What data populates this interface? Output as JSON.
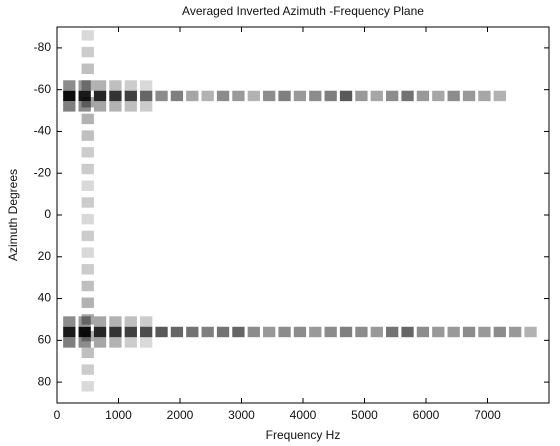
{
  "chart_data": {
    "type": "heatmap",
    "title": "Averaged Inverted Azimuth -Frequency Plane",
    "x_label": "Frequency Hz",
    "y_label": "Azimuth Degrees",
    "color": "#000000",
    "y_reversed": true,
    "xlim": [
      0,
      8000
    ],
    "ylim": [
      -90,
      90
    ],
    "xticks": [
      0,
      1000,
      2000,
      3000,
      4000,
      5000,
      6000,
      7000
    ],
    "yticks": [
      -80,
      -60,
      -40,
      -20,
      0,
      20,
      40,
      60,
      80
    ],
    "x": [
      500,
      500,
      500,
      500,
      500,
      500,
      500,
      500,
      500,
      500,
      500,
      500,
      500,
      500,
      500,
      500,
      500,
      500,
      500,
      500,
      500,
      500,
      200,
      450,
      700,
      950,
      1200,
      1450,
      200,
      450,
      700,
      950,
      1200,
      1450,
      200,
      450,
      700,
      950,
      1200,
      1450,
      1700,
      1950,
      2200,
      2450,
      2700,
      2950,
      3200,
      3450,
      3700,
      3950,
      4200,
      4450,
      4700,
      4950,
      5200,
      5450,
      5700,
      5950,
      6200,
      6450,
      6700,
      6950,
      7200,
      200,
      450,
      700,
      950,
      1200,
      1450,
      200,
      450,
      700,
      950,
      1200,
      1450,
      200,
      450,
      700,
      950,
      1200,
      1450,
      1700,
      1950,
      2200,
      2450,
      2700,
      2950,
      3200,
      3450,
      3700,
      3950,
      4200,
      4450,
      4700,
      4950,
      5200,
      5450,
      5700,
      5950,
      6200,
      6450,
      6700,
      6950,
      7200,
      7450,
      7700
    ],
    "y": [
      -86,
      -78,
      -70,
      -62,
      -54,
      -46,
      -38,
      -30,
      -22,
      -14,
      -6,
      2,
      10,
      18,
      26,
      34,
      42,
      50,
      58,
      66,
      74,
      82,
      -52,
      -52,
      -52,
      -52,
      -52,
      -52,
      -62,
      -62,
      -62,
      -62,
      -62,
      -62,
      -57,
      -57,
      -57,
      -57,
      -57,
      -57,
      -57,
      -57,
      -57,
      -57,
      -57,
      -57,
      -57,
      -57,
      -57,
      -57,
      -57,
      -57,
      -57,
      -57,
      -57,
      -57,
      -57,
      -57,
      -57,
      -57,
      -57,
      -57,
      -57,
      51,
      51,
      51,
      51,
      51,
      51,
      61,
      61,
      61,
      61,
      61,
      61,
      56,
      56,
      56,
      56,
      56,
      56,
      56,
      56,
      56,
      56,
      56,
      56,
      56,
      56,
      56,
      56,
      56,
      56,
      56,
      56,
      56,
      56,
      56,
      56,
      56,
      56,
      56,
      56,
      56,
      56,
      56
    ],
    "values": [
      0.15,
      0.2,
      0.25,
      0.3,
      0.35,
      0.3,
      0.25,
      0.2,
      0.2,
      0.15,
      0.2,
      0.15,
      0.2,
      0.15,
      0.2,
      0.25,
      0.3,
      0.35,
      0.3,
      0.25,
      0.2,
      0.15,
      0.5,
      0.45,
      0.35,
      0.3,
      0.25,
      0.2,
      0.45,
      0.4,
      0.3,
      0.25,
      0.2,
      0.15,
      0.95,
      0.9,
      0.85,
      0.8,
      0.75,
      0.6,
      0.45,
      0.5,
      0.35,
      0.3,
      0.45,
      0.4,
      0.3,
      0.45,
      0.5,
      0.4,
      0.45,
      0.5,
      0.65,
      0.4,
      0.35,
      0.45,
      0.55,
      0.4,
      0.35,
      0.45,
      0.4,
      0.35,
      0.3,
      0.45,
      0.4,
      0.35,
      0.3,
      0.25,
      0.2,
      0.5,
      0.45,
      0.35,
      0.3,
      0.2,
      0.15,
      0.9,
      0.95,
      0.85,
      0.8,
      0.75,
      0.7,
      0.65,
      0.6,
      0.55,
      0.5,
      0.55,
      0.6,
      0.45,
      0.4,
      0.45,
      0.45,
      0.4,
      0.45,
      0.5,
      0.45,
      0.4,
      0.55,
      0.6,
      0.45,
      0.4,
      0.4,
      0.45,
      0.4,
      0.45,
      0.4,
      0.3
    ]
  }
}
